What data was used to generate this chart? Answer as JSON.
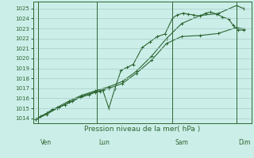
{
  "bg_color": "#cceee8",
  "grid_color": "#aacccc",
  "line_color": "#2d6633",
  "xlabel": "Pression niveau de la mer( hPa )",
  "ylim": [
    1013.5,
    1025.7
  ],
  "yticks": [
    1014,
    1015,
    1016,
    1017,
    1018,
    1019,
    1020,
    1021,
    1022,
    1023,
    1024,
    1025
  ],
  "day_labels": [
    "Ven",
    "Lun",
    "Sam",
    "Dim"
  ],
  "day_positions": [
    0.08,
    2.0,
    4.5,
    6.6
  ],
  "series1_x": [
    0.0,
    0.15,
    0.35,
    0.55,
    0.75,
    0.95,
    1.2,
    1.45,
    1.75,
    1.95,
    2.1,
    2.2,
    2.4,
    2.6,
    2.8,
    3.0,
    3.2,
    3.5,
    3.75,
    4.0,
    4.25,
    4.5,
    4.65,
    4.85,
    5.0,
    5.2,
    5.4,
    5.6,
    5.75,
    5.95,
    6.15,
    6.35,
    6.5,
    6.65,
    6.85
  ],
  "series1_y": [
    1013.9,
    1014.2,
    1014.5,
    1014.9,
    1015.1,
    1015.35,
    1015.7,
    1016.1,
    1016.35,
    1016.6,
    1016.7,
    1016.8,
    1015.0,
    1017.0,
    1018.8,
    1019.1,
    1019.4,
    1021.1,
    1021.65,
    1022.2,
    1022.45,
    1024.05,
    1024.35,
    1024.55,
    1024.45,
    1024.35,
    1024.25,
    1024.55,
    1024.65,
    1024.45,
    1024.15,
    1023.95,
    1023.3,
    1022.85,
    1022.85
  ],
  "series2_x": [
    0.0,
    0.35,
    0.7,
    1.1,
    1.5,
    1.95,
    2.4,
    2.85,
    3.3,
    3.8,
    4.3,
    4.8,
    5.4,
    6.0,
    6.6,
    6.85
  ],
  "series2_y": [
    1013.9,
    1014.5,
    1015.1,
    1015.75,
    1016.3,
    1016.75,
    1017.15,
    1017.7,
    1018.7,
    1020.2,
    1022.0,
    1023.5,
    1024.3,
    1024.5,
    1025.3,
    1025.0
  ],
  "series3_x": [
    0.0,
    0.35,
    0.7,
    1.1,
    1.5,
    1.95,
    2.4,
    2.85,
    3.3,
    3.8,
    4.3,
    4.8,
    5.4,
    6.0,
    6.6,
    6.85
  ],
  "series3_y": [
    1013.9,
    1014.4,
    1015.0,
    1015.6,
    1016.2,
    1016.65,
    1017.0,
    1017.5,
    1018.5,
    1019.8,
    1021.5,
    1022.2,
    1022.3,
    1022.5,
    1023.1,
    1022.95
  ]
}
